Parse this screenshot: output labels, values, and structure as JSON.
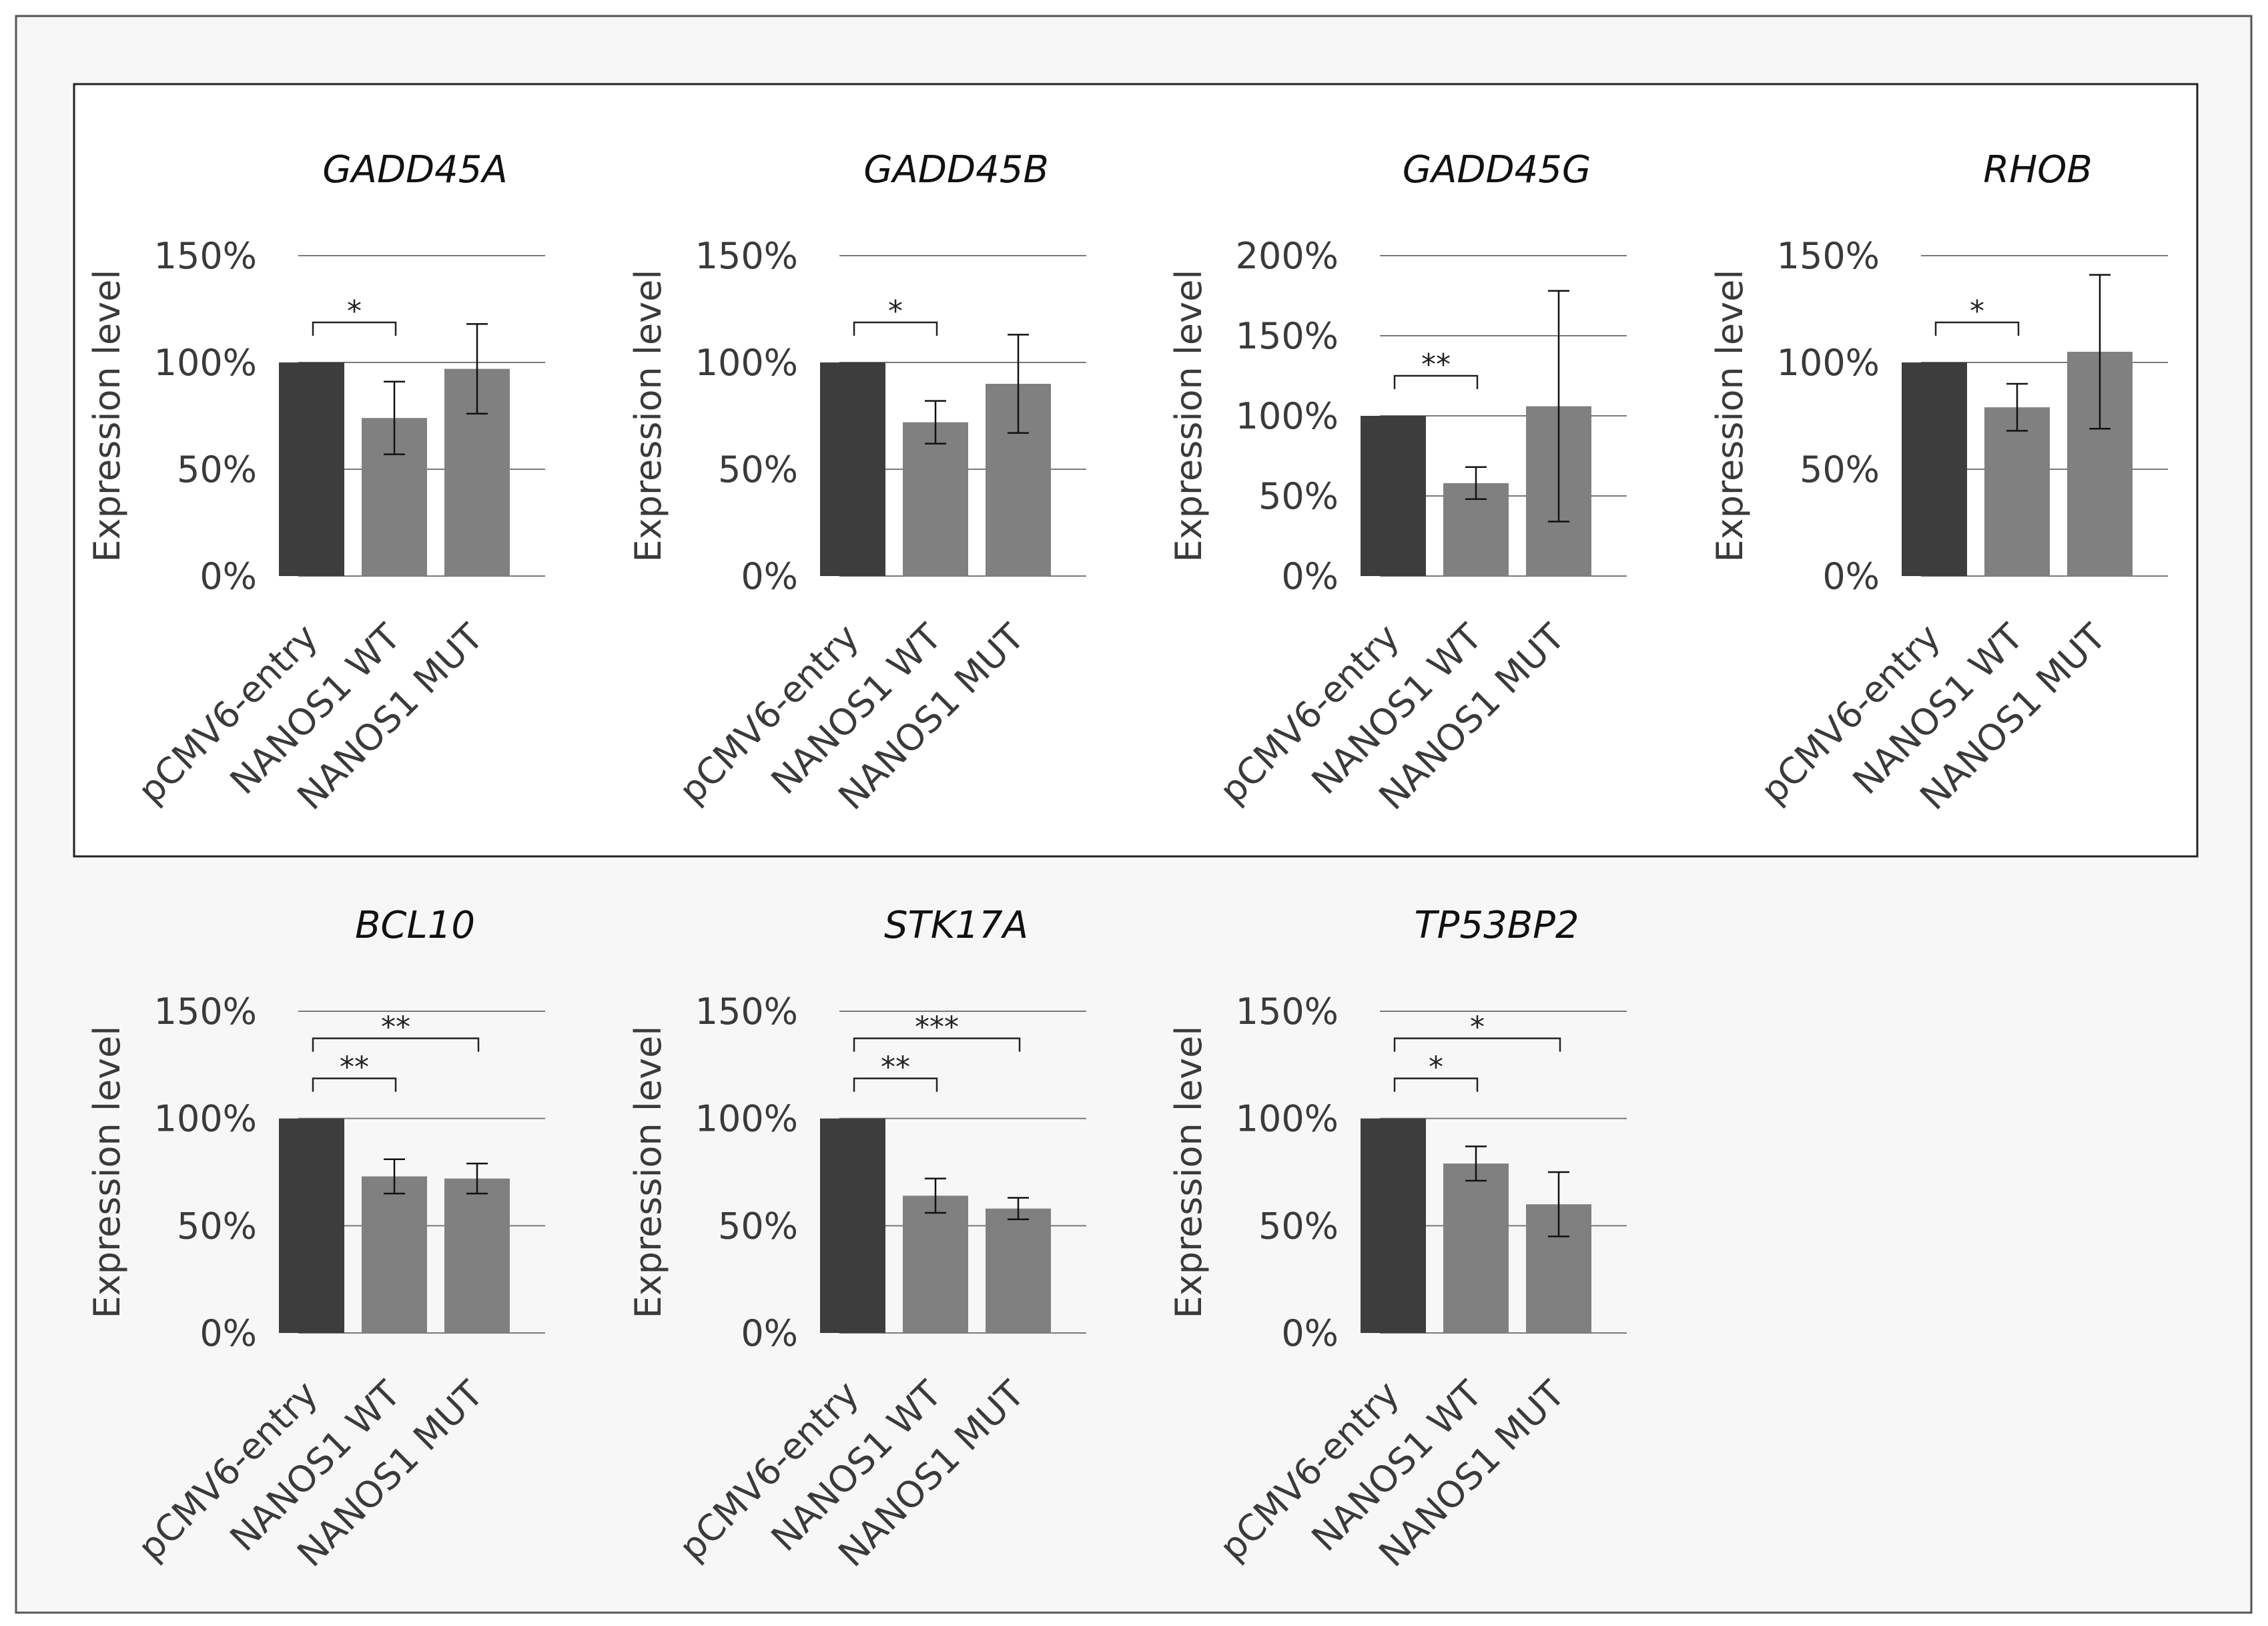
{
  "figure": {
    "colors": {
      "background": "#f7f7f7",
      "panel_background": "#ffffff",
      "bar_control": "#3d3d3d",
      "bar_treatment": "#808080",
      "gridline": "#7a7a7a",
      "text": "#3a3a3a"
    }
  },
  "chart_data": [
    {
      "type": "bar",
      "title": "GADD45A",
      "ylabel": "Expression level",
      "categories": [
        "pCMV6-entry",
        "NANOS1 WT",
        "NANOS1 MUT"
      ],
      "values": [
        100,
        74,
        97
      ],
      "errors": [
        0,
        17,
        21
      ],
      "ylim": [
        0,
        150
      ],
      "yticks": [
        0,
        50,
        100,
        150
      ],
      "ytick_labels": [
        "0%",
        "50%",
        "100%",
        "150%"
      ],
      "significance": [
        {
          "from": 0,
          "to": 1,
          "label": "*"
        }
      ]
    },
    {
      "type": "bar",
      "title": "GADD45B",
      "ylabel": "Expression level",
      "categories": [
        "pCMV6-entry",
        "NANOS1 WT",
        "NANOS1 MUT"
      ],
      "values": [
        100,
        72,
        90
      ],
      "errors": [
        0,
        10,
        23
      ],
      "ylim": [
        0,
        150
      ],
      "yticks": [
        0,
        50,
        100,
        150
      ],
      "ytick_labels": [
        "0%",
        "50%",
        "100%",
        "150%"
      ],
      "significance": [
        {
          "from": 0,
          "to": 1,
          "label": "*"
        }
      ]
    },
    {
      "type": "bar",
      "title": "GADD45G",
      "ylabel": "Expression level",
      "categories": [
        "pCMV6-entry",
        "NANOS1 WT",
        "NANOS1 MUT"
      ],
      "values": [
        100,
        58,
        106
      ],
      "errors": [
        0,
        10,
        72
      ],
      "ylim": [
        0,
        200
      ],
      "yticks": [
        0,
        50,
        100,
        150,
        200
      ],
      "ytick_labels": [
        "0%",
        "50%",
        "100%",
        "150%",
        "200%"
      ],
      "significance": [
        {
          "from": 0,
          "to": 1,
          "label": "**"
        }
      ]
    },
    {
      "type": "bar",
      "title": "RHOB",
      "ylabel": "Expression level",
      "categories": [
        "pCMV6-entry",
        "NANOS1 WT",
        "NANOS1 MUT"
      ],
      "values": [
        100,
        79,
        105
      ],
      "errors": [
        0,
        11,
        36
      ],
      "ylim": [
        0,
        150
      ],
      "yticks": [
        0,
        50,
        100,
        150
      ],
      "ytick_labels": [
        "0%",
        "50%",
        "100%",
        "150%"
      ],
      "significance": [
        {
          "from": 0,
          "to": 1,
          "label": "*"
        }
      ]
    },
    {
      "type": "bar",
      "title": "BCL10",
      "ylabel": "Expression level",
      "categories": [
        "pCMV6-entry",
        "NANOS1 WT",
        "NANOS1 MUT"
      ],
      "values": [
        100,
        73,
        72
      ],
      "errors": [
        0,
        8,
        7
      ],
      "ylim": [
        0,
        150
      ],
      "yticks": [
        0,
        50,
        100,
        150
      ],
      "ytick_labels": [
        "0%",
        "50%",
        "100%",
        "150%"
      ],
      "significance": [
        {
          "from": 0,
          "to": 1,
          "label": "**"
        },
        {
          "from": 0,
          "to": 2,
          "label": "**"
        }
      ]
    },
    {
      "type": "bar",
      "title": "STK17A",
      "ylabel": "Expression level",
      "categories": [
        "pCMV6-entry",
        "NANOS1 WT",
        "NANOS1 MUT"
      ],
      "values": [
        100,
        64,
        58
      ],
      "errors": [
        0,
        8,
        5
      ],
      "ylim": [
        0,
        150
      ],
      "yticks": [
        0,
        50,
        100,
        150
      ],
      "ytick_labels": [
        "0%",
        "50%",
        "100%",
        "150%"
      ],
      "significance": [
        {
          "from": 0,
          "to": 1,
          "label": "**"
        },
        {
          "from": 0,
          "to": 2,
          "label": "***"
        }
      ]
    },
    {
      "type": "bar",
      "title": "TP53BP2",
      "ylabel": "Expression level",
      "categories": [
        "pCMV6-entry",
        "NANOS1 WT",
        "NANOS1 MUT"
      ],
      "values": [
        100,
        79,
        60
      ],
      "errors": [
        0,
        8,
        15
      ],
      "ylim": [
        0,
        150
      ],
      "yticks": [
        0,
        50,
        100,
        150
      ],
      "ytick_labels": [
        "0%",
        "50%",
        "100%",
        "150%"
      ],
      "significance": [
        {
          "from": 0,
          "to": 1,
          "label": "*"
        },
        {
          "from": 0,
          "to": 2,
          "label": "*"
        }
      ]
    }
  ]
}
